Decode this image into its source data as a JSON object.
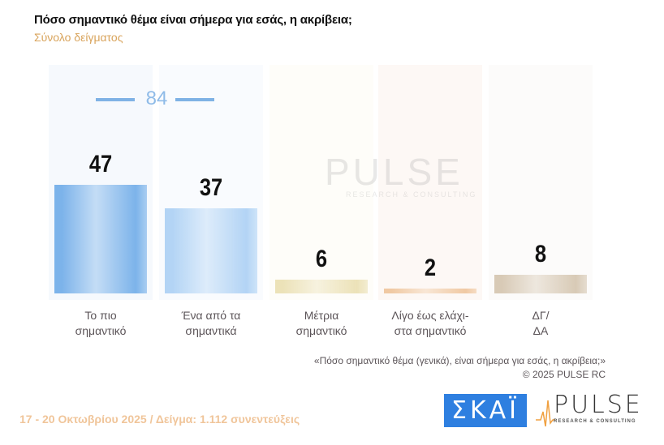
{
  "header": {
    "title": "Πόσο σημαντικό θέμα είναι σήμερα για εσάς, η ακρίβεια;",
    "subtitle": "Σύνολο δείγματος"
  },
  "chart_data": {
    "type": "bar",
    "title": "Πόσο σημαντικό θέμα είναι σήμερα για εσάς, η ακρίβεια;",
    "subtitle": "Σύνολο δείγματος",
    "categories": [
      "Το πιο σημαντικό",
      "Ένα από τα σημαντικά",
      "Μέτρια σημαντικό",
      "Λίγο έως ελάχιστα σημαντικό",
      "ΔΓ/ΔΑ"
    ],
    "category_lines": [
      [
        "Το πιο",
        "σημαντικό"
      ],
      [
        "Ένα από τα",
        "σημαντικά"
      ],
      [
        "Μέτρια",
        "σημαντικό"
      ],
      [
        "Λίγο έως ελάχι-",
        "στα σημαντικό"
      ],
      [
        "ΔΓ/",
        "ΔΑ"
      ]
    ],
    "values": [
      47,
      37,
      6,
      2,
      8
    ],
    "value_labels": [
      "47",
      "37",
      "6",
      "2",
      "8"
    ],
    "colors": [
      "#7cb3ea",
      "#b3d4f5",
      "#ece2b8",
      "#f0c9a3",
      "#d8cab6"
    ],
    "bg_colors": [
      "#f6f9fd",
      "#f9fbfe",
      "#fefdf9",
      "#fdf8f5",
      "#fcfbfa"
    ],
    "combined_total": {
      "label": "84",
      "categories": [
        "Το πιο σημαντικό",
        "Ένα από τα σημαντικά"
      ]
    },
    "xlabel": "",
    "ylabel": "",
    "ylim": [
      0,
      100
    ],
    "grid": false,
    "legend": "none"
  },
  "watermark": {
    "text": "PULSE",
    "sub": "RESEARCH & CONSULTING"
  },
  "note": {
    "question": "«Πόσο σημαντικό θέμα (γενικά), είναι σήμερα για εσάς, η ακρίβεια;»",
    "copyright": "©  2025  PULSE RC"
  },
  "footer": {
    "text": "17 - 20 Οκτωβρίου 2025  /  Δείγμα:  1.112 συνεντεύξεις"
  },
  "logos": {
    "skai": "ΣΚΑΪ",
    "pulse": "PULSE",
    "pulse_sub": "RESEARCH & CONSULTING"
  }
}
